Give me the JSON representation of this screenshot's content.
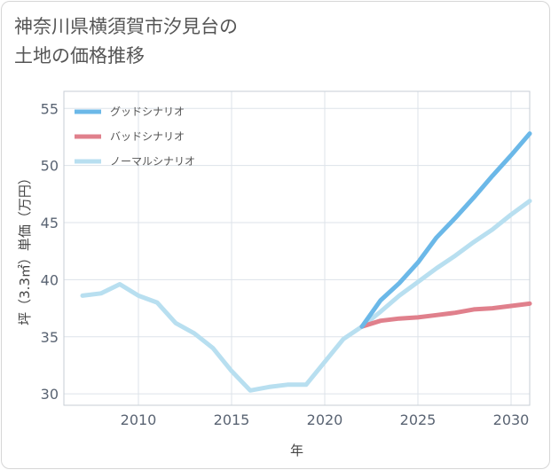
{
  "chart_data": {
    "type": "line",
    "title_line1": "神奈川県横須賀市汐見台の",
    "title_line2": "土地の価格推移",
    "xlabel": "年",
    "ylabel": "坪（3.3㎡）単価（万円）",
    "xlim": [
      2006,
      2031
    ],
    "ylim": [
      29,
      56.5
    ],
    "x_ticks": [
      2010,
      2015,
      2020,
      2025,
      2030
    ],
    "y_ticks": [
      30,
      35,
      40,
      45,
      50,
      55
    ],
    "legend_position": "top-left",
    "series": [
      {
        "name": "グッドシナリオ",
        "color": "#6bb8e8",
        "x": [
          2022,
          2023,
          2024,
          2025,
          2026,
          2027,
          2028,
          2029,
          2030,
          2031
        ],
        "y": [
          35.9,
          38.2,
          39.7,
          41.5,
          43.7,
          45.4,
          47.2,
          49.1,
          50.9,
          52.8
        ]
      },
      {
        "name": "バッドシナリオ",
        "color": "#e0808c",
        "x": [
          2022,
          2023,
          2024,
          2025,
          2026,
          2027,
          2028,
          2029,
          2030,
          2031
        ],
        "y": [
          35.9,
          36.4,
          36.6,
          36.7,
          36.9,
          37.1,
          37.4,
          37.5,
          37.7,
          37.9
        ]
      },
      {
        "name": "ノーマルシナリオ",
        "color": "#b8dff0",
        "x": [
          2007,
          2008,
          2009,
          2010,
          2011,
          2012,
          2013,
          2014,
          2015,
          2016,
          2017,
          2018,
          2019,
          2020,
          2021,
          2022,
          2023,
          2024,
          2025,
          2026,
          2027,
          2028,
          2029,
          2030,
          2031
        ],
        "y": [
          38.6,
          38.8,
          39.6,
          38.6,
          38.0,
          36.2,
          35.3,
          34.0,
          32.0,
          30.3,
          30.6,
          30.8,
          30.8,
          32.8,
          34.8,
          35.9,
          37.2,
          38.6,
          39.8,
          41.0,
          42.1,
          43.3,
          44.4,
          45.7,
          46.9
        ]
      }
    ]
  }
}
